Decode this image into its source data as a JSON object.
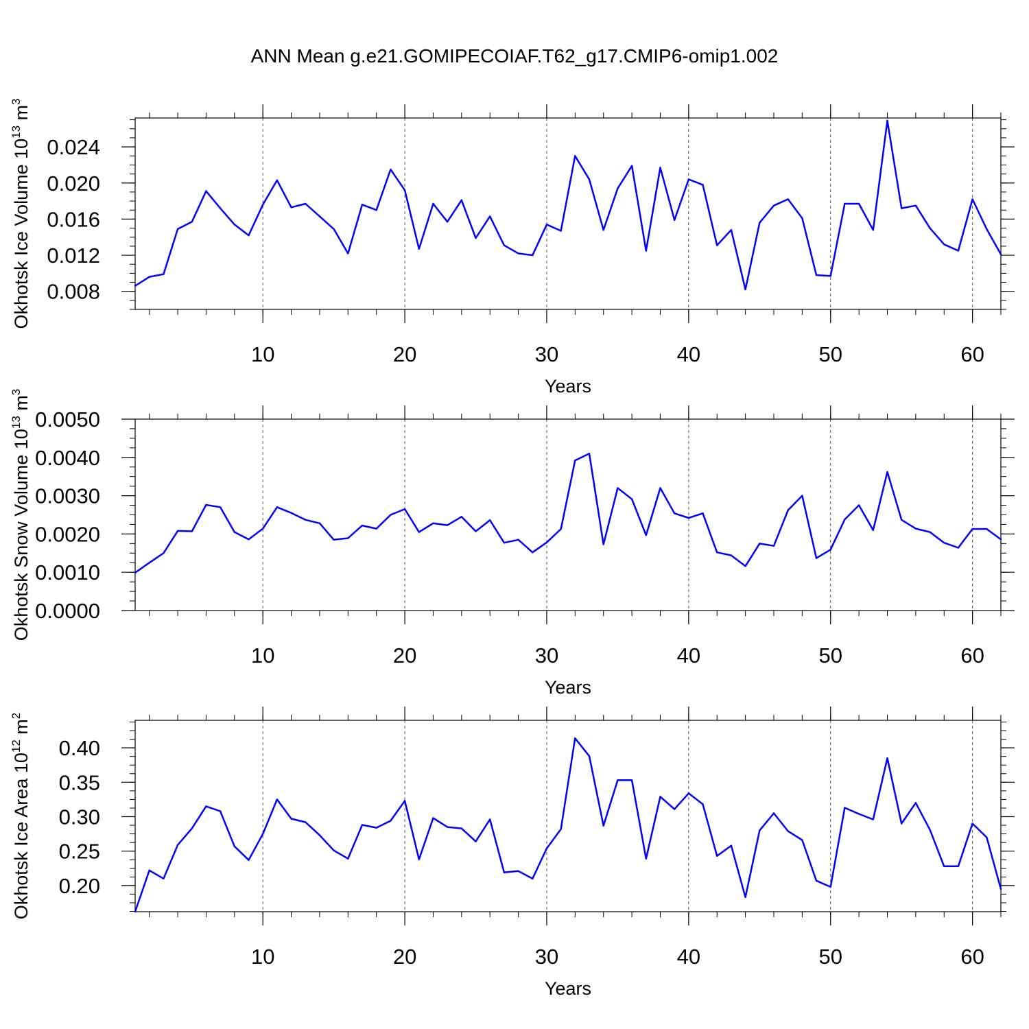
{
  "title": "ANN Mean g.e21.GOMIPECOIAF.T62_g17.CMIP6-omip1.002",
  "colors": {
    "line": "#0000ff",
    "axis": "#000000",
    "grid": "#555555"
  },
  "chart_data": [
    {
      "type": "line",
      "ylabel_text": "Okhotsk Ice Volume 10",
      "ylabel_exp": "13",
      "ylabel_unit": "m",
      "ylabel_unit_exp": "3",
      "xlabel": "Years",
      "xlim": [
        1,
        62
      ],
      "ylim": [
        0.006,
        0.0272
      ],
      "yticks": [
        0.008,
        0.012,
        0.016,
        0.02,
        0.024
      ],
      "ytick_labels": [
        "0.008",
        "0.012",
        "0.016",
        "0.020",
        "0.024"
      ],
      "xticks": [
        10,
        20,
        30,
        40,
        50,
        60
      ],
      "xtick_labels": [
        "10",
        "20",
        "30",
        "40",
        "50",
        "60"
      ],
      "x": [
        1,
        2,
        3,
        4,
        5,
        6,
        7,
        8,
        9,
        10,
        11,
        12,
        13,
        14,
        15,
        16,
        17,
        18,
        19,
        20,
        21,
        22,
        23,
        24,
        25,
        26,
        27,
        28,
        29,
        30,
        31,
        32,
        33,
        34,
        35,
        36,
        37,
        38,
        39,
        40,
        41,
        42,
        43,
        44,
        45,
        46,
        47,
        48,
        49,
        50,
        51,
        52,
        53,
        54,
        55,
        56,
        57,
        58,
        59,
        60,
        61,
        62
      ],
      "values": [
        0.0086,
        0.0096,
        0.0099,
        0.0149,
        0.0157,
        0.0191,
        0.0172,
        0.0154,
        0.0142,
        0.0176,
        0.0203,
        0.0173,
        0.0177,
        0.0163,
        0.0149,
        0.0122,
        0.0176,
        0.017,
        0.0215,
        0.0192,
        0.0127,
        0.0177,
        0.0157,
        0.0181,
        0.0139,
        0.0163,
        0.0131,
        0.0122,
        0.012,
        0.0154,
        0.0147,
        0.023,
        0.0204,
        0.0148,
        0.0194,
        0.0219,
        0.0125,
        0.0217,
        0.0159,
        0.0204,
        0.0198,
        0.0131,
        0.0148,
        0.0082,
        0.0156,
        0.0175,
        0.0182,
        0.0161,
        0.0098,
        0.0097,
        0.0177,
        0.0177,
        0.0148,
        0.0269,
        0.0172,
        0.0175,
        0.015,
        0.0132,
        0.0125,
        0.0182,
        0.0149,
        0.0121
      ]
    },
    {
      "type": "line",
      "ylabel_text": "Okhotsk Snow Volume 10",
      "ylabel_exp": "13",
      "ylabel_unit": "m",
      "ylabel_unit_exp": "3",
      "xlabel": "Years",
      "xlim": [
        1,
        62
      ],
      "ylim": [
        0.0,
        0.005
      ],
      "yticks": [
        0.0,
        0.001,
        0.002,
        0.003,
        0.004,
        0.005
      ],
      "ytick_labels": [
        "0.0000",
        "0.0010",
        "0.0020",
        "0.0030",
        "0.0040",
        "0.0050"
      ],
      "xticks": [
        10,
        20,
        30,
        40,
        50,
        60
      ],
      "xtick_labels": [
        "10",
        "20",
        "30",
        "40",
        "50",
        "60"
      ],
      "x": [
        1,
        2,
        3,
        4,
        5,
        6,
        7,
        8,
        9,
        10,
        11,
        12,
        13,
        14,
        15,
        16,
        17,
        18,
        19,
        20,
        21,
        22,
        23,
        24,
        25,
        26,
        27,
        28,
        29,
        30,
        31,
        32,
        33,
        34,
        35,
        36,
        37,
        38,
        39,
        40,
        41,
        42,
        43,
        44,
        45,
        46,
        47,
        48,
        49,
        50,
        51,
        52,
        53,
        54,
        55,
        56,
        57,
        58,
        59,
        60,
        61,
        62
      ],
      "values": [
        0.00099,
        0.00125,
        0.0015,
        0.00208,
        0.00207,
        0.00276,
        0.0027,
        0.00205,
        0.00186,
        0.00214,
        0.0027,
        0.00255,
        0.00237,
        0.00228,
        0.00185,
        0.00189,
        0.00222,
        0.00214,
        0.0025,
        0.00265,
        0.00205,
        0.00228,
        0.00223,
        0.00245,
        0.00207,
        0.00236,
        0.00177,
        0.00185,
        0.00152,
        0.00178,
        0.00213,
        0.00392,
        0.0041,
        0.00173,
        0.0032,
        0.00291,
        0.00197,
        0.0032,
        0.00254,
        0.00242,
        0.00254,
        0.00152,
        0.00144,
        0.00116,
        0.00175,
        0.00169,
        0.00262,
        0.003,
        0.00137,
        0.00159,
        0.00238,
        0.00275,
        0.0021,
        0.00362,
        0.00237,
        0.00214,
        0.00205,
        0.00177,
        0.00164,
        0.00213,
        0.00213,
        0.00186
      ]
    },
    {
      "type": "line",
      "ylabel_text": "Okhotsk Ice Area 10",
      "ylabel_exp": "12",
      "ylabel_unit": "m",
      "ylabel_unit_exp": "2",
      "xlabel": "Years",
      "xlim": [
        1,
        62
      ],
      "ylim": [
        0.162,
        0.44
      ],
      "yticks": [
        0.2,
        0.25,
        0.3,
        0.35,
        0.4
      ],
      "ytick_labels": [
        "0.20",
        "0.25",
        "0.30",
        "0.35",
        "0.40"
      ],
      "xticks": [
        10,
        20,
        30,
        40,
        50,
        60
      ],
      "xtick_labels": [
        "10",
        "20",
        "30",
        "40",
        "50",
        "60"
      ],
      "x": [
        1,
        2,
        3,
        4,
        5,
        6,
        7,
        8,
        9,
        10,
        11,
        12,
        13,
        14,
        15,
        16,
        17,
        18,
        19,
        20,
        21,
        22,
        23,
        24,
        25,
        26,
        27,
        28,
        29,
        30,
        31,
        32,
        33,
        34,
        35,
        36,
        37,
        38,
        39,
        40,
        41,
        42,
        43,
        44,
        45,
        46,
        47,
        48,
        49,
        50,
        51,
        52,
        53,
        54,
        55,
        56,
        57,
        58,
        59,
        60,
        61,
        62
      ],
      "values": [
        0.162,
        0.222,
        0.21,
        0.259,
        0.283,
        0.315,
        0.308,
        0.257,
        0.237,
        0.275,
        0.325,
        0.297,
        0.292,
        0.273,
        0.251,
        0.239,
        0.288,
        0.284,
        0.294,
        0.323,
        0.238,
        0.298,
        0.285,
        0.283,
        0.264,
        0.296,
        0.219,
        0.221,
        0.21,
        0.254,
        0.282,
        0.414,
        0.388,
        0.287,
        0.353,
        0.353,
        0.239,
        0.329,
        0.311,
        0.334,
        0.318,
        0.243,
        0.258,
        0.183,
        0.28,
        0.305,
        0.279,
        0.266,
        0.207,
        0.198,
        0.313,
        0.304,
        0.296,
        0.385,
        0.29,
        0.32,
        0.281,
        0.228,
        0.228,
        0.29,
        0.27,
        0.195
      ]
    }
  ]
}
